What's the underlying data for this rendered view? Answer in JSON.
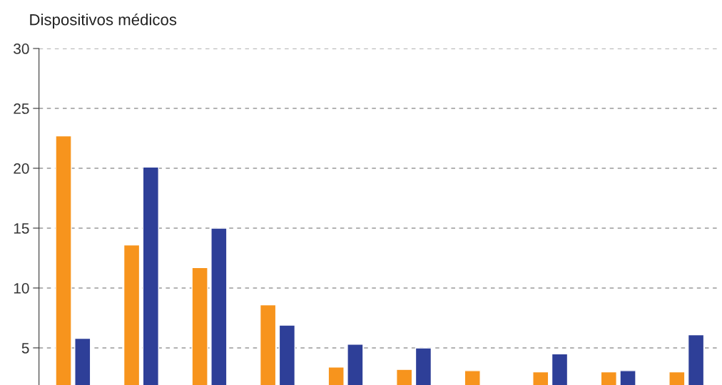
{
  "chart_data": {
    "type": "bar",
    "title": "Dispositivos médicos",
    "categories": [
      null,
      null,
      null,
      null,
      null,
      null,
      null,
      null,
      null,
      null
    ],
    "series": [
      {
        "color": "#f7941d",
        "values": [
          22.7,
          13.6,
          11.7,
          8.6,
          3.4,
          3.2,
          3.1,
          3.0,
          3.0,
          3.0
        ]
      },
      {
        "color": "#2e3f98",
        "values": [
          5.8,
          20.1,
          15.0,
          6.9,
          5.3,
          5.0,
          null,
          4.5,
          3.1,
          6.1
        ]
      }
    ],
    "ylim": [
      1.9,
      30
    ],
    "yticks": [
      5,
      10,
      15,
      20,
      25,
      30
    ],
    "grid": "y",
    "legend": false
  }
}
